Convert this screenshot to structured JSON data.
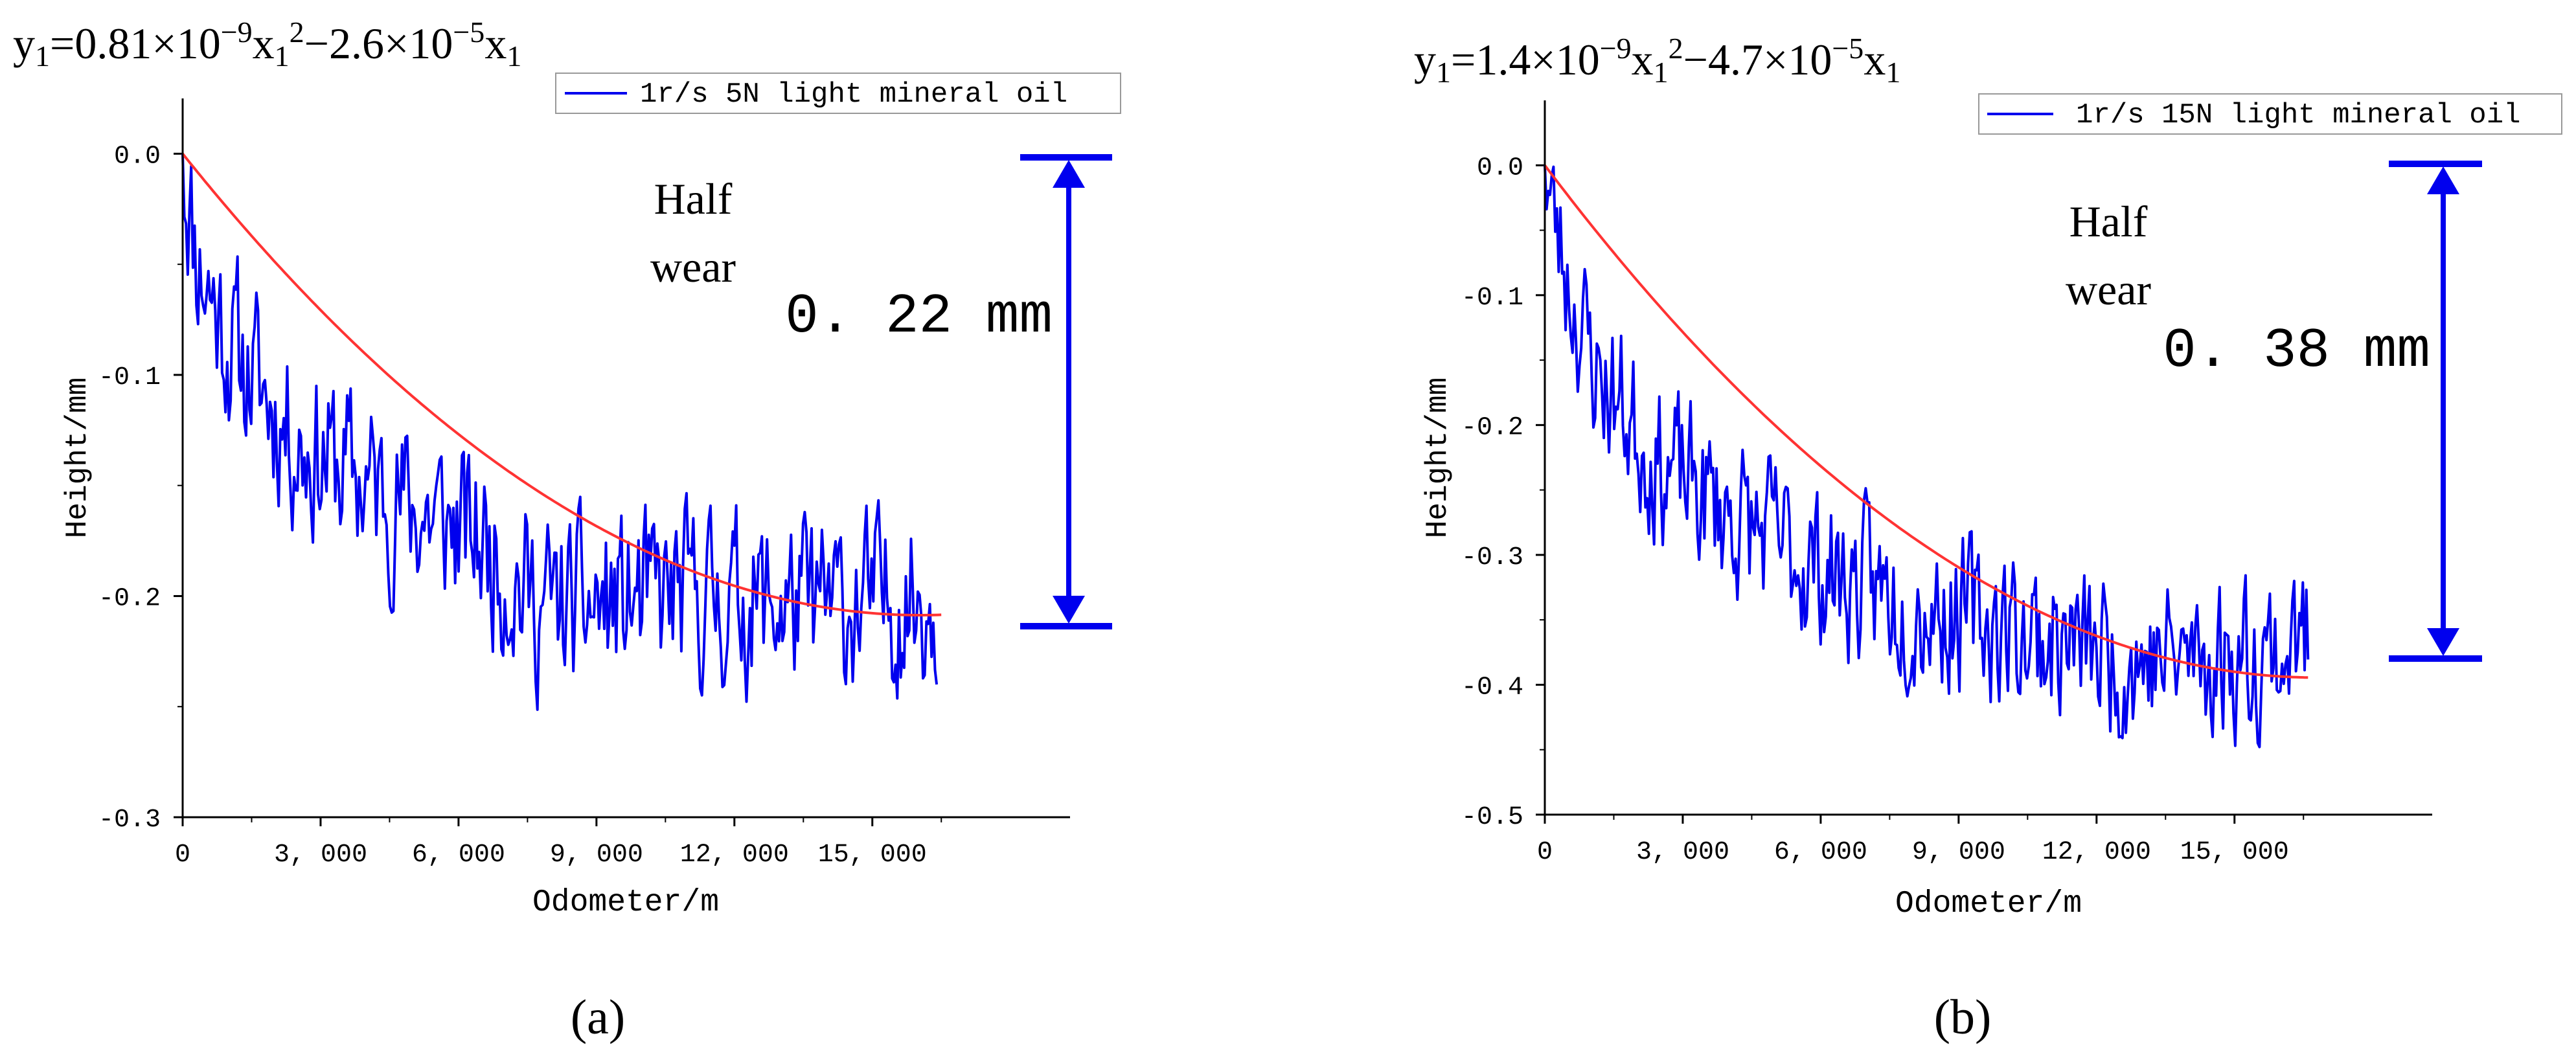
{
  "chart_data": [
    {
      "type": "line",
      "panel_label": "(a)",
      "equation": "y1=0.81×10^-9 x1^2 − 2.6×10^-5 x1",
      "equation_parts": {
        "lead": "y",
        "sub1": "1",
        "t1": "=0.81×10",
        "sup1": "−9",
        "t2": "x",
        "sub2": "1",
        "sup2": "2",
        "t3": "−2.6×10",
        "sup3": "−5",
        "t4": "x",
        "sub3": "1"
      },
      "legend": "1r/s 5N light mineral oil",
      "xlabel": "Odometer/m",
      "ylabel": "Height/mm",
      "xlim": [
        0,
        19300
      ],
      "ylim": [
        -0.3,
        0.025
      ],
      "xticks": [
        0,
        3000,
        6000,
        9000,
        12000,
        15000
      ],
      "xtick_labels": [
        "0",
        "3, 000",
        "6, 000",
        "9, 000",
        "12, 000",
        "15, 000"
      ],
      "yticks": [
        0.0,
        -0.1,
        -0.2,
        -0.3
      ],
      "ytick_labels": [
        "0.0",
        "-0.1",
        "-0.2",
        "-0.3"
      ],
      "fit": {
        "a": 8.1e-10,
        "b": -2.6e-05,
        "x_end": 16500,
        "color": "#ff3333"
      },
      "noisy_series": {
        "name": "1r/s 5N light mineral oil",
        "color": "#0000ee",
        "x_end": 16400,
        "amplitude": 0.045,
        "seed": 11,
        "trend": [
          [
            0,
            0
          ],
          [
            300,
            -0.045
          ],
          [
            1000,
            -0.085
          ],
          [
            2500,
            -0.13
          ],
          [
            4500,
            -0.155
          ],
          [
            6500,
            -0.175
          ],
          [
            7800,
            -0.205
          ],
          [
            9000,
            -0.205
          ],
          [
            11000,
            -0.2
          ],
          [
            14000,
            -0.205
          ],
          [
            16400,
            -0.2
          ]
        ]
      },
      "annotation_text": [
        "Half",
        "wear"
      ],
      "dimension_label": "0. 22  mm",
      "dimension_color": "#0000ee"
    },
    {
      "type": "line",
      "panel_label": "(b)",
      "equation": "y1=1.4×10^-9 x1^2 − 4.7×10^-5 x1",
      "equation_parts": {
        "lead": "y",
        "sub1": "1",
        "t1": "=1.4×10",
        "sup1": "−9",
        "t2": "x",
        "sub2": "1",
        "sup2": "2",
        "t3": "−4.7×10",
        "sup3": "−5",
        "t4": "x",
        "sub3": "1"
      },
      "legend": "1r/s 15N light mineral oil",
      "xlabel": "Odometer/m",
      "ylabel": "Height/mm",
      "xlim": [
        0,
        19300
      ],
      "ylim": [
        -0.5,
        0.05
      ],
      "xticks": [
        0,
        3000,
        6000,
        9000,
        12000,
        15000
      ],
      "xtick_labels": [
        "0",
        "3, 000",
        "6, 000",
        "9, 000",
        "12, 000",
        "15, 000"
      ],
      "yticks": [
        0.0,
        -0.1,
        -0.2,
        -0.3,
        -0.4,
        -0.5
      ],
      "ytick_labels": [
        "0.0",
        "-0.1",
        "-0.2",
        "-0.3",
        "-0.4",
        "-0.5"
      ],
      "fit": {
        "a": 1.4e-09,
        "b": -4.7e-05,
        "x_end": 16600,
        "color": "#ff3333"
      },
      "noisy_series": {
        "name": "1r/s 15N light mineral oil",
        "color": "#0000ee",
        "x_end": 16600,
        "amplitude": 0.07,
        "seed": 23,
        "trend": [
          [
            0,
            0
          ],
          [
            300,
            -0.06
          ],
          [
            1000,
            -0.15
          ],
          [
            2500,
            -0.23
          ],
          [
            4500,
            -0.28
          ],
          [
            6500,
            -0.32
          ],
          [
            8500,
            -0.34
          ],
          [
            10500,
            -0.36
          ],
          [
            12500,
            -0.38
          ],
          [
            14500,
            -0.38
          ],
          [
            16600,
            -0.37
          ]
        ]
      },
      "annotation_text": [
        "Half",
        "wear"
      ],
      "dimension_label": "0. 38  mm",
      "dimension_color": "#0000ee"
    }
  ]
}
